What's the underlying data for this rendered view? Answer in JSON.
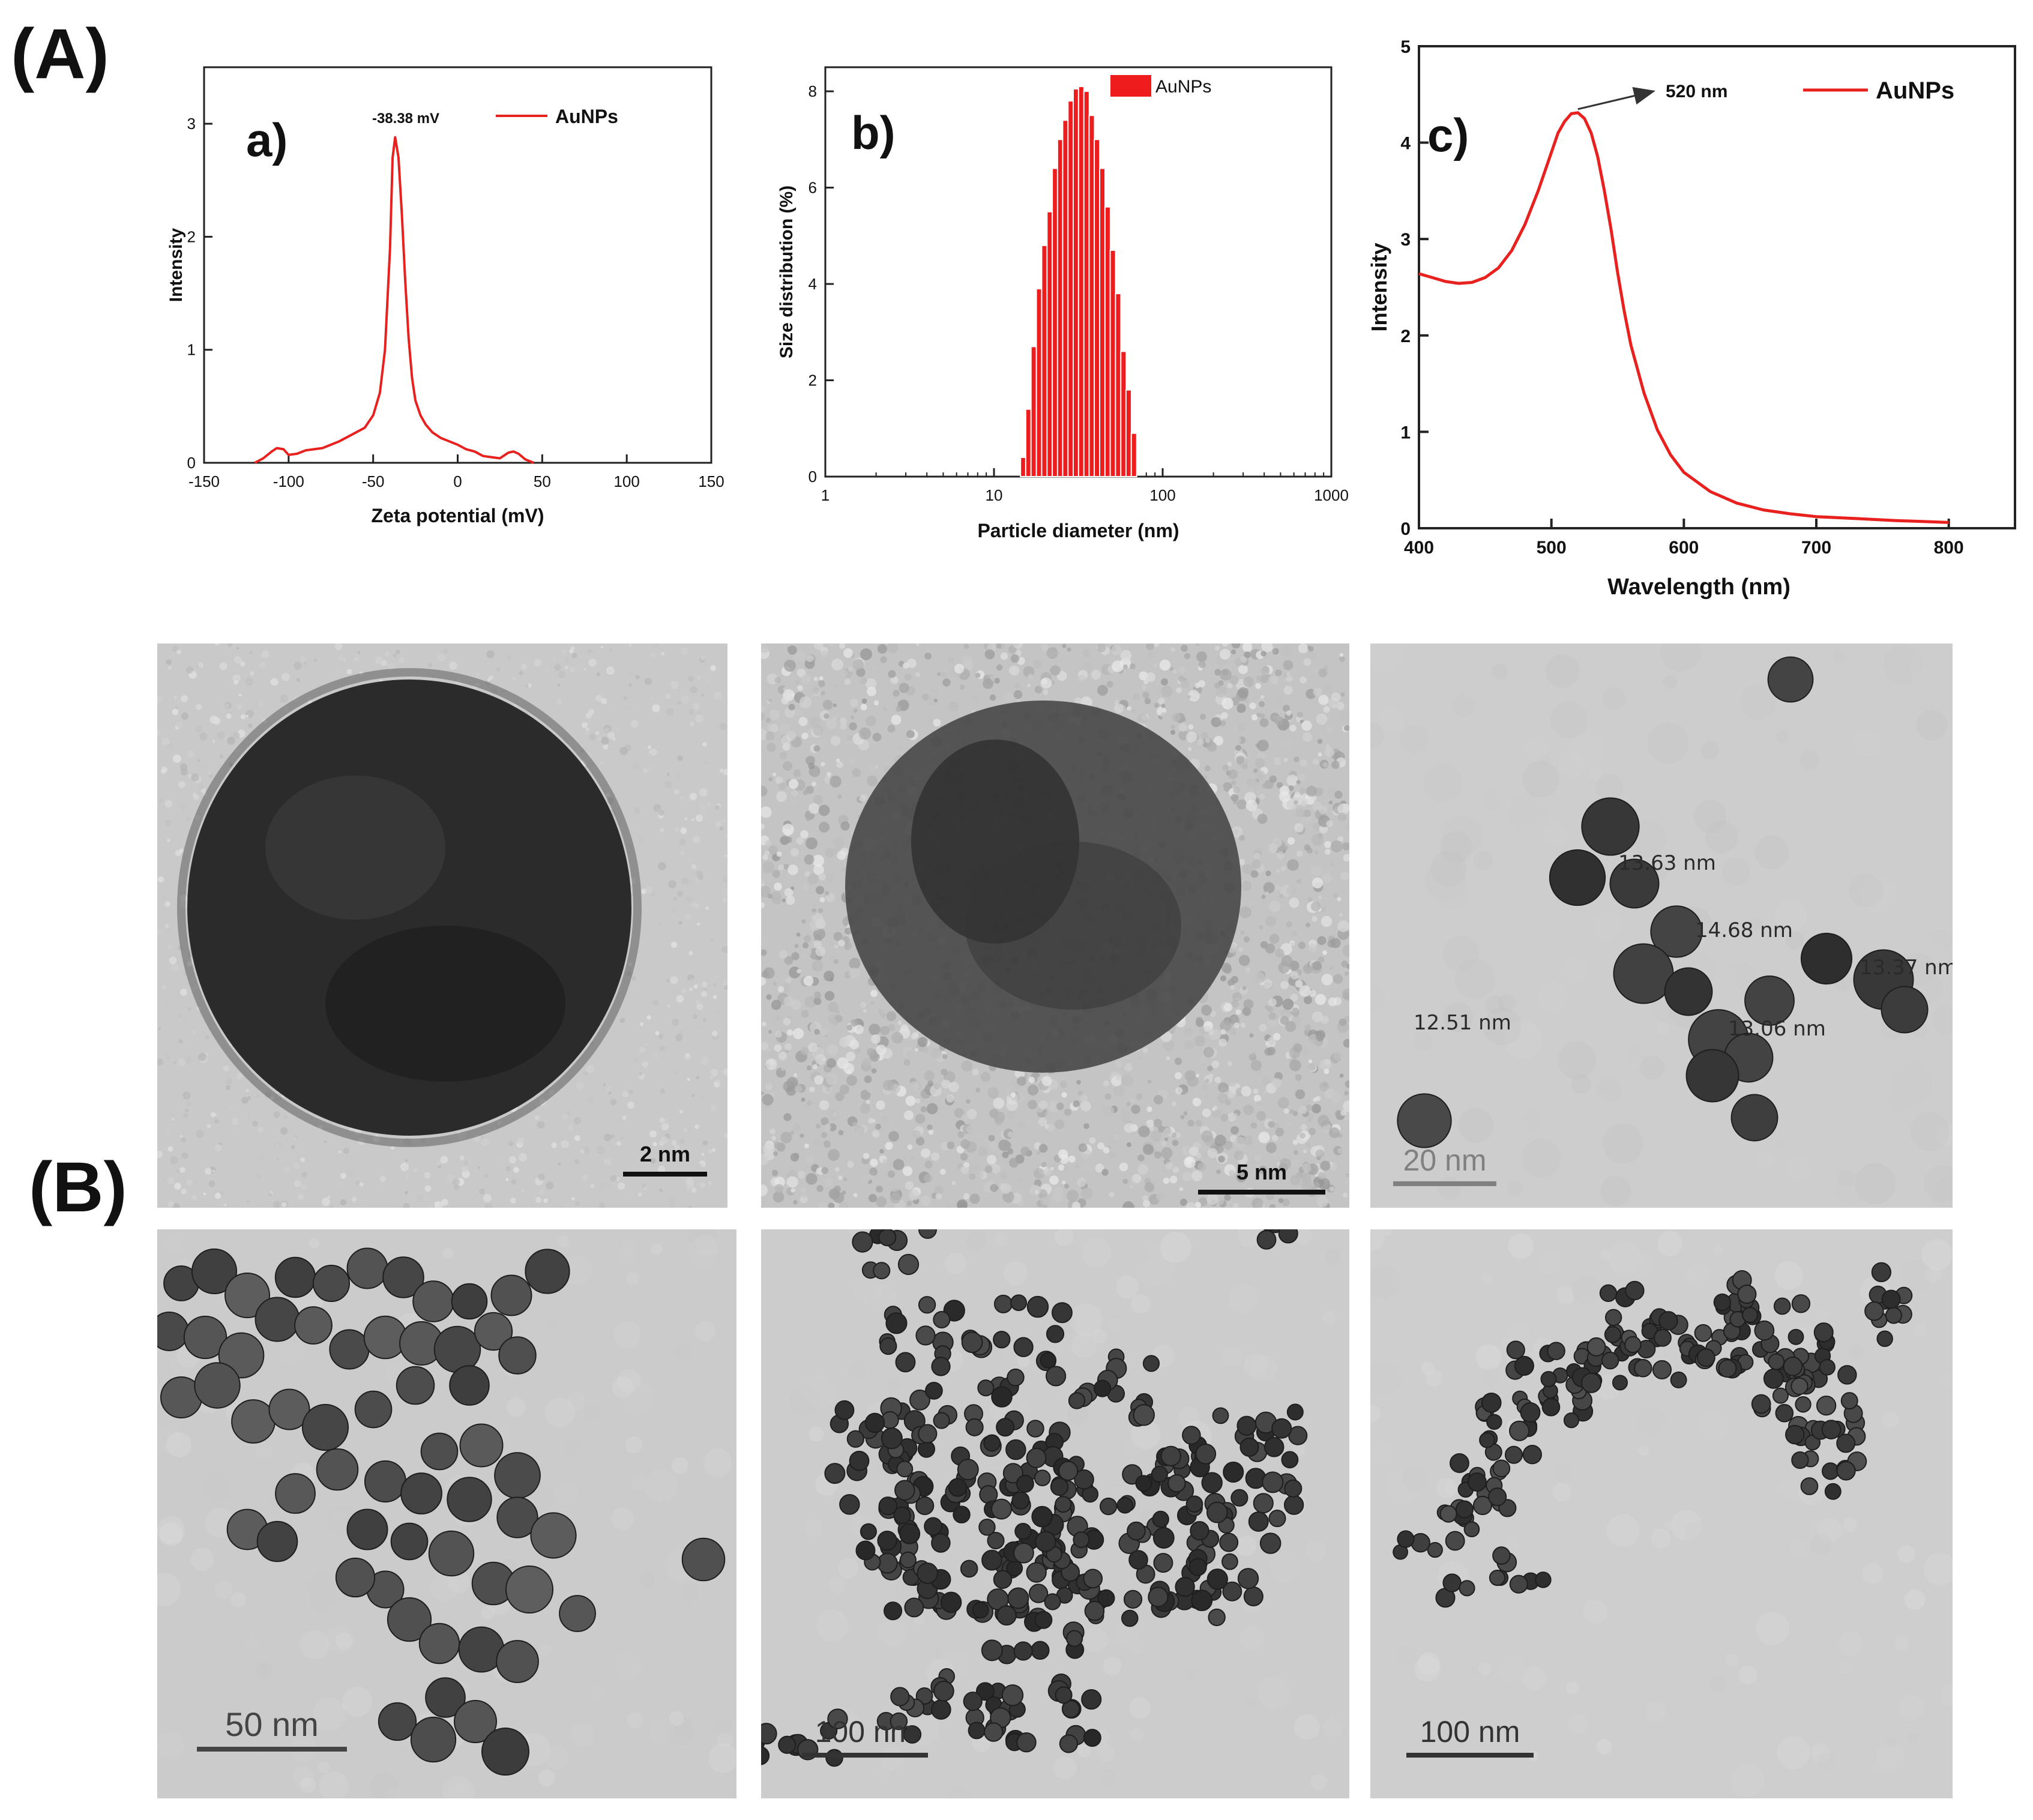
{
  "figure": {
    "panel_A_label": "(A)",
    "panel_B_label": "(B)"
  },
  "colors": {
    "series": "#e8201e",
    "axis": "#222222",
    "bar": "#ee1c1c"
  },
  "chart_data": [
    {
      "type": "line",
      "panel_label": "a)",
      "title": "",
      "xlabel": "Zeta potential (mV)",
      "ylabel": "Intensity",
      "xlim": [
        -150,
        150
      ],
      "ylim": [
        0,
        3.5
      ],
      "xticks": [
        -150,
        -100,
        -50,
        0,
        50,
        100,
        150
      ],
      "yticks": [
        0,
        1,
        2,
        3
      ],
      "grid": false,
      "legend_position": "top-right",
      "annotation": "-38.38 mV",
      "series": [
        {
          "name": "AuNPs",
          "x": [
            -120,
            -115,
            -110,
            -107,
            -103,
            -100,
            -95,
            -90,
            -85,
            -80,
            -75,
            -70,
            -65,
            -60,
            -55,
            -50,
            -46,
            -43,
            -40,
            -38.5,
            -37,
            -35,
            -33,
            -31,
            -29,
            -27,
            -25,
            -22,
            -19,
            -15,
            -10,
            -5,
            0,
            5,
            10,
            15,
            20,
            25,
            30,
            33,
            36,
            40,
            45
          ],
          "y": [
            0.0,
            0.04,
            0.1,
            0.13,
            0.12,
            0.07,
            0.08,
            0.11,
            0.12,
            0.13,
            0.16,
            0.19,
            0.23,
            0.27,
            0.31,
            0.42,
            0.62,
            1.0,
            1.9,
            2.7,
            2.88,
            2.7,
            2.2,
            1.6,
            1.1,
            0.75,
            0.55,
            0.42,
            0.34,
            0.27,
            0.22,
            0.19,
            0.16,
            0.12,
            0.1,
            0.06,
            0.05,
            0.04,
            0.09,
            0.1,
            0.08,
            0.03,
            0.0
          ]
        }
      ]
    },
    {
      "type": "bar",
      "panel_label": "b)",
      "title": "",
      "xlabel": "Particle diameter (nm)",
      "ylabel": "Size distribution (%)",
      "xscale": "log",
      "xlim": [
        1,
        1000
      ],
      "ylim": [
        0,
        8.5
      ],
      "xticks": [
        1,
        10,
        100,
        1000
      ],
      "yticks": [
        0,
        2,
        4,
        6,
        8
      ],
      "grid": false,
      "legend_position": "top-right",
      "series": [
        {
          "name": "AuNPs",
          "x": [
            14.9,
            16.0,
            17.2,
            18.5,
            19.9,
            21.4,
            23.0,
            24.7,
            26.5,
            28.5,
            30.6,
            32.9,
            35.4,
            38.0,
            40.8,
            43.9,
            47.2,
            50.7,
            54.5,
            58.6,
            62.9,
            67.6
          ],
          "values": [
            0.4,
            1.4,
            2.7,
            3.9,
            4.8,
            5.5,
            6.4,
            7.0,
            7.4,
            7.8,
            8.05,
            8.1,
            8.0,
            7.5,
            7.0,
            6.4,
            5.6,
            4.7,
            3.8,
            2.6,
            1.8,
            0.9
          ]
        }
      ]
    },
    {
      "type": "line",
      "panel_label": "c)",
      "title": "",
      "xlabel": "Wavelength (nm)",
      "ylabel": "Intensity",
      "xlim": [
        400,
        850
      ],
      "ylim": [
        0,
        5
      ],
      "xticks": [
        400,
        500,
        600,
        700,
        800
      ],
      "yticks": [
        0,
        1,
        2,
        3,
        4,
        5
      ],
      "grid": false,
      "legend_position": "top-right",
      "annotation": "520 nm",
      "series": [
        {
          "name": "AuNPs",
          "x": [
            400,
            410,
            420,
            430,
            440,
            450,
            460,
            470,
            480,
            490,
            500,
            505,
            510,
            515,
            520,
            525,
            530,
            535,
            540,
            545,
            550,
            555,
            560,
            570,
            580,
            590,
            600,
            620,
            640,
            660,
            680,
            700,
            730,
            760,
            800
          ],
          "y": [
            2.64,
            2.6,
            2.56,
            2.54,
            2.55,
            2.6,
            2.7,
            2.88,
            3.15,
            3.5,
            3.9,
            4.1,
            4.22,
            4.3,
            4.31,
            4.25,
            4.1,
            3.85,
            3.5,
            3.1,
            2.65,
            2.25,
            1.9,
            1.4,
            1.02,
            0.76,
            0.58,
            0.38,
            0.26,
            0.19,
            0.15,
            0.12,
            0.1,
            0.08,
            0.06
          ]
        }
      ]
    }
  ],
  "tem_images": [
    {
      "scale_label": "2 nm"
    },
    {
      "scale_label": "5 nm"
    },
    {
      "scale_label": "20 nm",
      "measurements": [
        "13.63 nm",
        "14.68 nm",
        "13.37 nm",
        "12.51 nm",
        "13.06 nm"
      ]
    },
    {
      "scale_label": "50 nm"
    },
    {
      "scale_label": "100 nm"
    },
    {
      "scale_label": "100 nm"
    }
  ]
}
